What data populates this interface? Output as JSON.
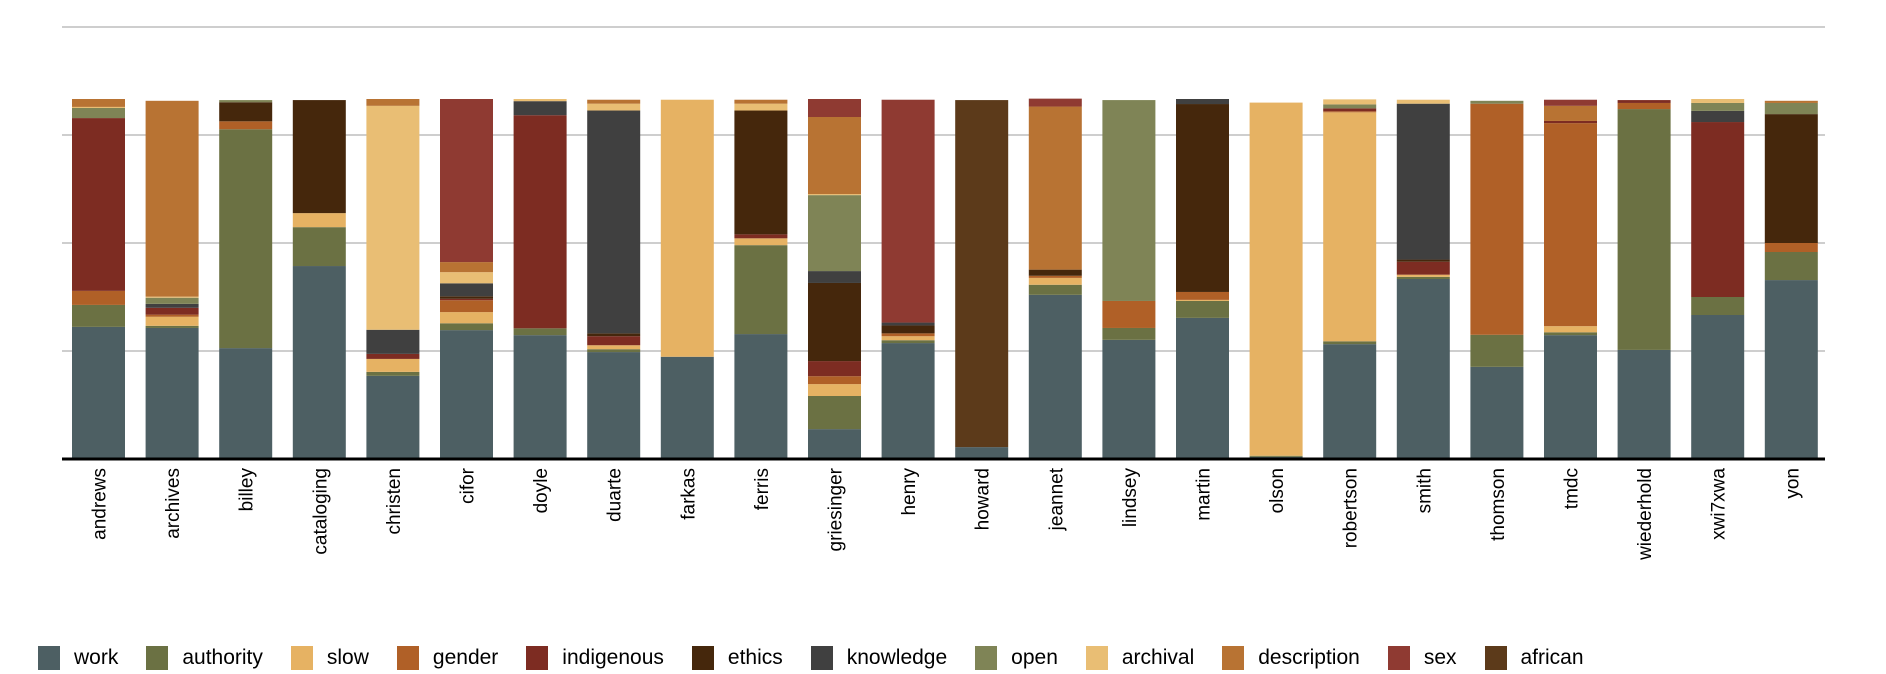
{
  "chart_data": {
    "type": "bar",
    "stacked": true,
    "title": "",
    "xlabel": "",
    "ylabel": "",
    "ylim": [
      0,
      1.2
    ],
    "y_gridlines": [
      0.3,
      0.6,
      0.9,
      1.2
    ],
    "y_tick_labels_shown": false,
    "grid": true,
    "legend_position": "bottom",
    "categories": [
      "andrews",
      "archives",
      "billey",
      "cataloging",
      "christen",
      "cifor",
      "doyle",
      "duarte",
      "farkas",
      "ferris",
      "griesinger",
      "henry",
      "howard",
      "jeannet",
      "lindsey",
      "martin",
      "olson",
      "robertson",
      "smith",
      "thomson",
      "tmdc",
      "wiederhold",
      "xwi7xwa",
      "yon"
    ],
    "series": [
      {
        "name": "work",
        "color": "#4d5f63",
        "values": [
          0.367,
          0.364,
          0.308,
          0.536,
          0.231,
          0.358,
          0.344,
          0.297,
          0.284,
          0.347,
          0.083,
          0.322,
          0.033,
          0.456,
          0.331,
          0.392,
          0.006,
          0.319,
          0.5,
          0.256,
          0.344,
          0.303,
          0.4,
          0.497
        ]
      },
      {
        "name": "authority",
        "color": "#6b7143",
        "values": [
          0.061,
          0.006,
          0.608,
          0.108,
          0.011,
          0.019,
          0.019,
          0.008,
          0,
          0.247,
          0.092,
          0.008,
          0,
          0.028,
          0.033,
          0.047,
          0.003,
          0.008,
          0.006,
          0.089,
          0.008,
          0.669,
          0.05,
          0.078
        ]
      },
      {
        "name": "slow",
        "color": "#e6b263",
        "values": [
          0,
          0.025,
          0,
          0.039,
          0.036,
          0.031,
          0,
          0.011,
          0.714,
          0.019,
          0.033,
          0.011,
          0,
          0.019,
          0,
          0.003,
          0.981,
          0.636,
          0.006,
          0,
          0.017,
          0,
          0,
          0
        ]
      },
      {
        "name": "gender",
        "color": "#b06027",
        "values": [
          0.039,
          0.006,
          0.022,
          0,
          0,
          0.033,
          0,
          0,
          0,
          0,
          0.022,
          0.008,
          0,
          0.006,
          0.075,
          0.022,
          0,
          0.003,
          0,
          0.642,
          0.564,
          0.017,
          0,
          0.025
        ]
      },
      {
        "name": "indigenous",
        "color": "#7d2c22",
        "values": [
          0.48,
          0.019,
          0,
          0,
          0.014,
          0.004,
          0.592,
          0.025,
          0,
          0.011,
          0.042,
          0,
          0,
          0,
          0,
          0,
          0,
          0.008,
          0.036,
          0,
          0.006,
          0.008,
          0.486,
          0
        ]
      },
      {
        "name": "ethics",
        "color": "#45270c",
        "values": [
          0,
          0,
          0.053,
          0.314,
          0,
          0.007,
          0,
          0.008,
          0,
          0.344,
          0.217,
          0.022,
          0,
          0.017,
          0,
          0.522,
          0,
          0,
          0.006,
          0,
          0,
          0,
          0,
          0.358
        ]
      },
      {
        "name": "knowledge",
        "color": "#404040",
        "values": [
          0,
          0.011,
          0,
          0,
          0.067,
          0.036,
          0.039,
          0.619,
          0,
          0,
          0.033,
          0.008,
          0,
          0,
          0,
          0.014,
          0,
          0,
          0.433,
          0,
          0,
          0,
          0.031,
          0
        ]
      },
      {
        "name": "open",
        "color": "#7f8456",
        "values": [
          0.028,
          0.017,
          0.006,
          0,
          0,
          0,
          0,
          0,
          0,
          0,
          0.211,
          0,
          0,
          0,
          0.558,
          0,
          0,
          0.011,
          0,
          0.008,
          0,
          0,
          0.022,
          0.031
        ]
      },
      {
        "name": "archival",
        "color": "#e9be74",
        "values": [
          0.003,
          0.003,
          0,
          0,
          0.622,
          0.031,
          0.006,
          0.019,
          0,
          0.019,
          0.003,
          0,
          0,
          0,
          0,
          0,
          0,
          0.014,
          0.011,
          0,
          0,
          0,
          0.011,
          0
        ]
      },
      {
        "name": "description",
        "color": "#b87333",
        "values": [
          0.022,
          0.544,
          0,
          0,
          0.019,
          0.028,
          0,
          0.011,
          0,
          0.011,
          0.214,
          0,
          0,
          0.453,
          0,
          0,
          0,
          0,
          0,
          0,
          0.042,
          0,
          0,
          0.006
        ]
      },
      {
        "name": "sex",
        "color": "#8f3a32",
        "values": [
          0,
          0,
          0,
          0,
          0,
          0.453,
          0,
          0,
          0,
          0,
          0.05,
          0.619,
          0,
          0.022,
          0,
          0,
          0,
          0,
          0,
          0,
          0.017,
          0,
          0,
          0
        ]
      },
      {
        "name": "african",
        "color": "#5c3a1a",
        "values": [
          0,
          0,
          0,
          0,
          0,
          0,
          0,
          0,
          0,
          0,
          0,
          0,
          0.964,
          0,
          0,
          0,
          0,
          0,
          0,
          0,
          0,
          0,
          0,
          0
        ]
      }
    ]
  }
}
